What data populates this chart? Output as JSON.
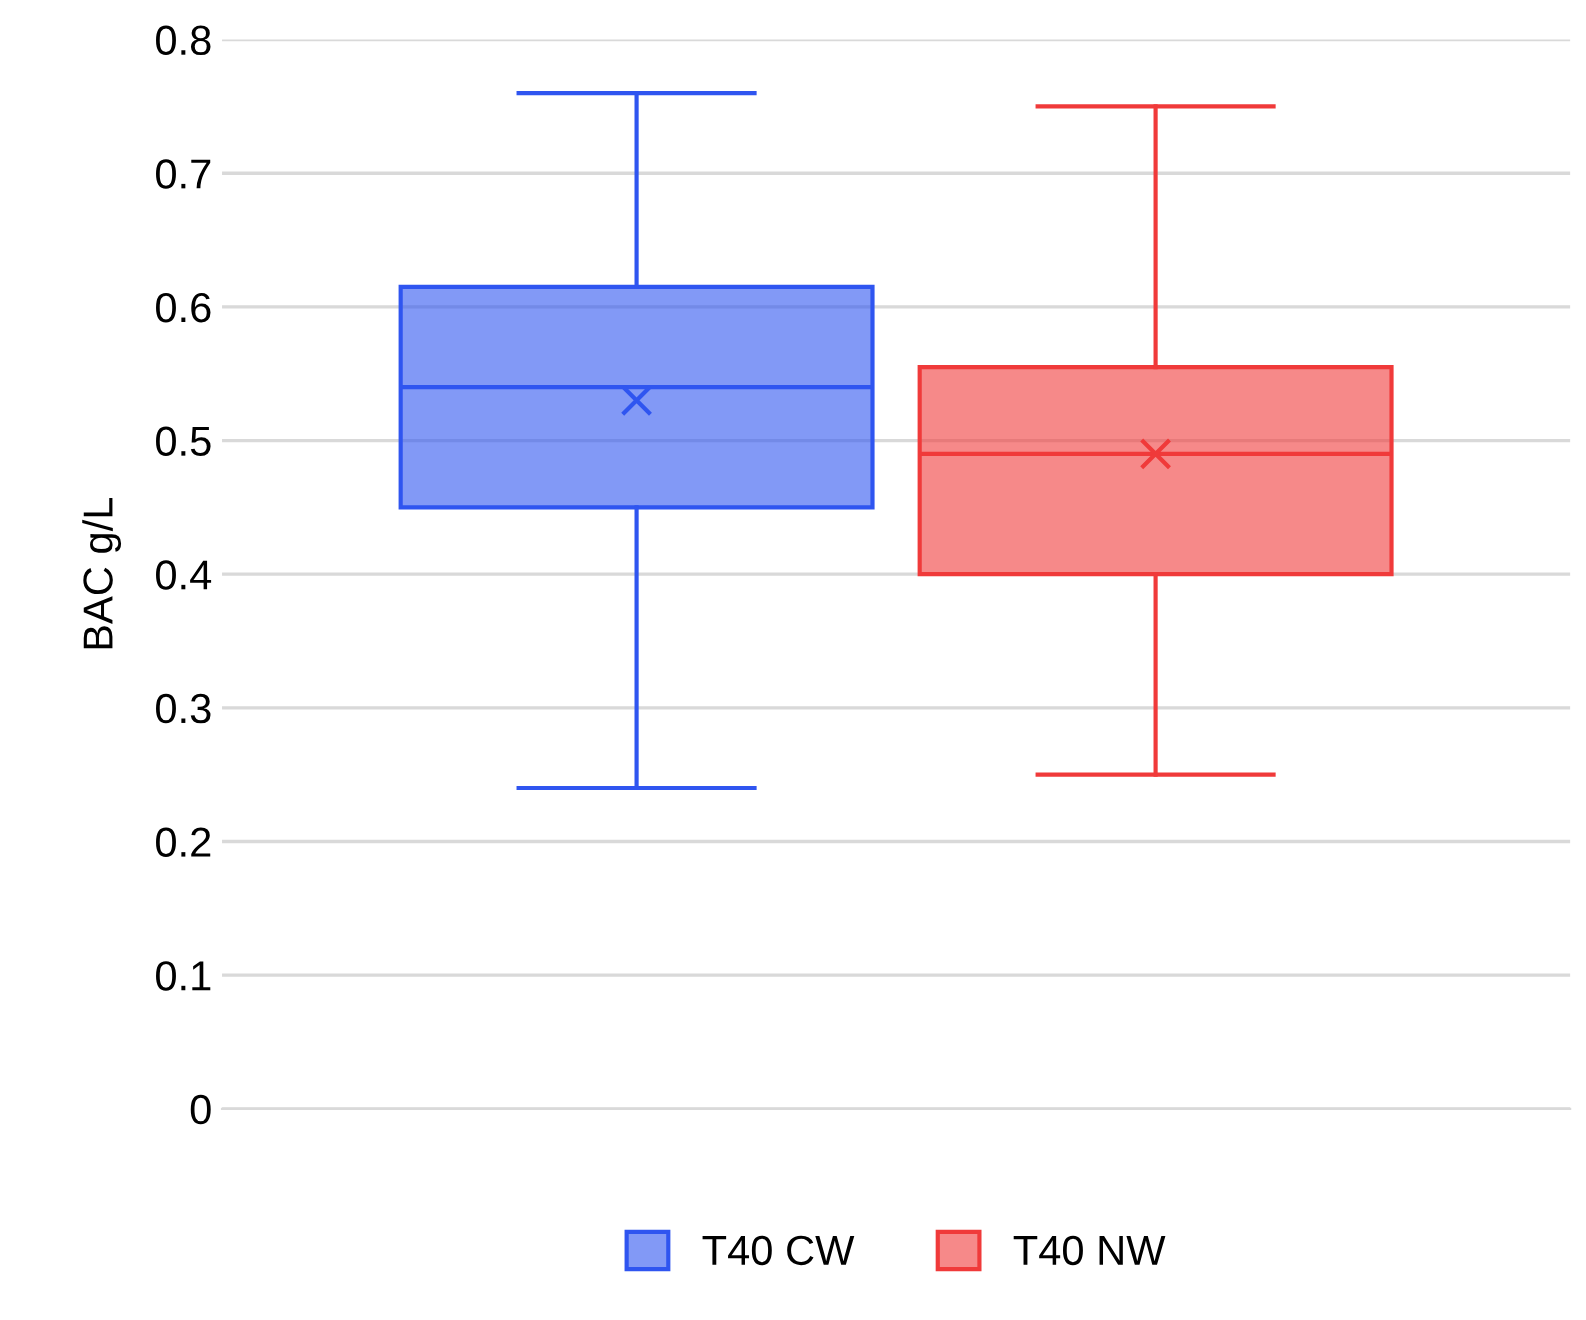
{
  "chart_data": {
    "type": "box",
    "ylabel": "BAC g/L",
    "categories": [
      null
    ],
    "series": [
      {
        "name": "T40 CW",
        "color": "#2f55f0",
        "boxes": [
          {
            "low": 0.24,
            "q1": 0.45,
            "median": 0.54,
            "q3": 0.615,
            "high": 0.76,
            "mean": 0.53
          }
        ]
      },
      {
        "name": "T40 NW",
        "color": "#f03a3a",
        "boxes": [
          {
            "low": 0.25,
            "q1": 0.4,
            "median": 0.49,
            "q3": 0.555,
            "high": 0.75,
            "mean": 0.49
          }
        ]
      }
    ],
    "ylim": [
      0,
      0.8
    ],
    "yticks": [
      0,
      0.1,
      0.2,
      0.3,
      0.4,
      0.5,
      0.6,
      0.7,
      0.8
    ],
    "grid": "y",
    "legend": "bottom"
  }
}
